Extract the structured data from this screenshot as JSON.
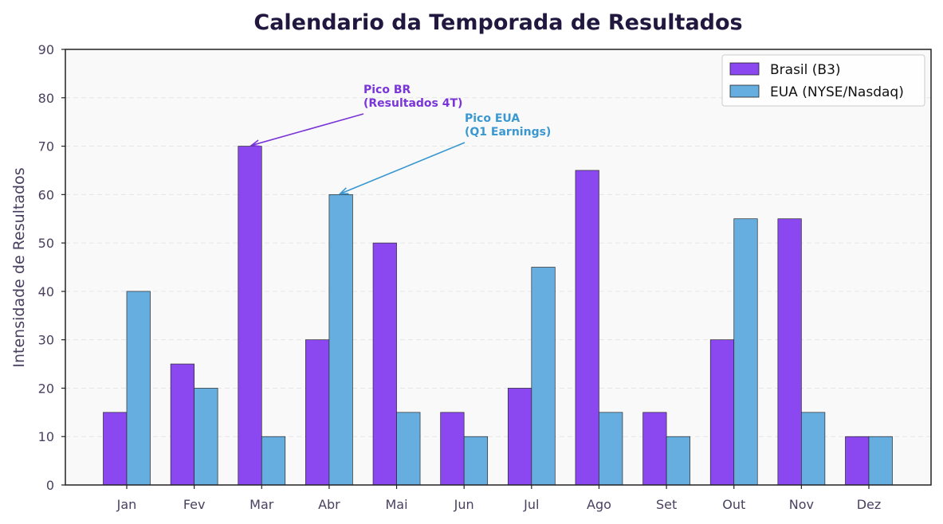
{
  "chart_data": {
    "type": "bar",
    "title": "Calendario da Temporada de Resultados",
    "xlabel": "",
    "ylabel": "Intensidade de Resultados",
    "ylim": [
      0,
      90
    ],
    "yticks": [
      0,
      10,
      20,
      30,
      40,
      50,
      60,
      70,
      80,
      90
    ],
    "categories": [
      "Jan",
      "Fev",
      "Mar",
      "Abr",
      "Mai",
      "Jun",
      "Jul",
      "Ago",
      "Set",
      "Out",
      "Nov",
      "Dez"
    ],
    "series": [
      {
        "name": "Brasil (B3)",
        "color": "#8b48f0",
        "values": [
          15,
          25,
          70,
          30,
          50,
          15,
          20,
          65,
          15,
          30,
          55,
          10
        ]
      },
      {
        "name": "EUA (NYSE/Nasdaq)",
        "color": "#66aee0",
        "values": [
          40,
          20,
          10,
          60,
          15,
          10,
          45,
          15,
          10,
          55,
          15,
          10
        ]
      }
    ],
    "grid": true,
    "legend_position": "top-right",
    "annotations": [
      {
        "lines": [
          "Pico BR",
          "(Resultados 4T)"
        ],
        "series": 0,
        "category": "Mar",
        "value": 70,
        "color": "#7a35d8"
      },
      {
        "lines": [
          "Pico EUA",
          "(Q1 Earnings)"
        ],
        "series": 1,
        "category": "Abr",
        "value": 60,
        "color": "#3a98d0"
      }
    ]
  }
}
